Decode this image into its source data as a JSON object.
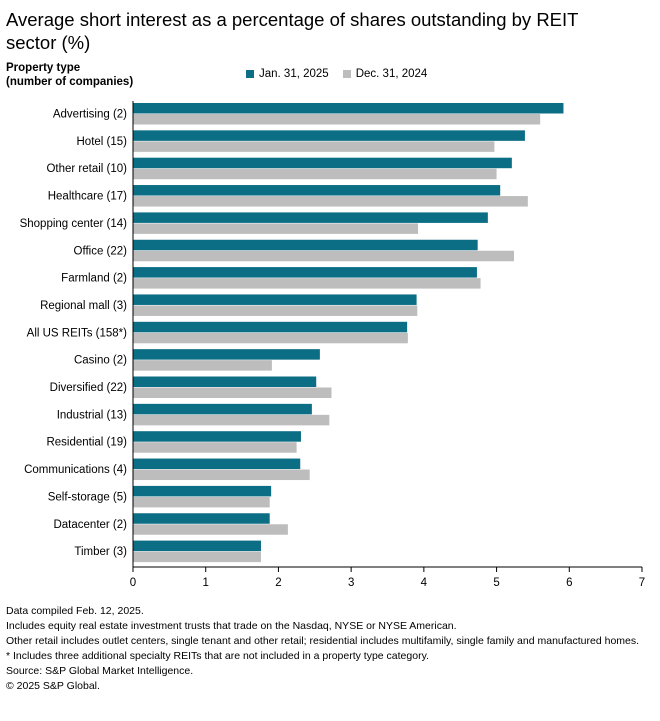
{
  "title": "Average short interest as a percentage of shares outstanding by REIT sector (%)",
  "y_axis_header": [
    "Property type",
    "(number of companies)"
  ],
  "chart_data": {
    "type": "bar",
    "orientation": "horizontal",
    "title": "Average short interest as a percentage of shares outstanding by REIT sector (%)",
    "xlim": [
      0,
      7
    ],
    "x_ticks": [
      "0",
      "1",
      "2",
      "3",
      "4",
      "5",
      "6",
      "7"
    ],
    "grid": false,
    "legend_position": "top",
    "categories": [
      "Advertising (2)",
      "Hotel (15)",
      "Other retail (10)",
      "Healthcare (17)",
      "Shopping center (14)",
      "Office (22)",
      "Farmland (2)",
      "Regional mall (3)",
      "All US REITs (158*)",
      "Casino (2)",
      "Diversified (22)",
      "Industrial (13)",
      "Residential (19)",
      "Communications (4)",
      "Self-storage (5)",
      "Datacenter (2)",
      "Timber (3)"
    ],
    "series": [
      {
        "name": "Jan. 31, 2025",
        "color": "#0b6e85",
        "values": [
          5.92,
          5.39,
          5.21,
          5.05,
          4.88,
          4.74,
          4.73,
          3.9,
          3.77,
          2.57,
          2.52,
          2.46,
          2.31,
          2.3,
          1.9,
          1.88,
          1.76
        ]
      },
      {
        "name": "Dec. 31, 2024",
        "color": "#bdbdbd",
        "values": [
          5.6,
          4.97,
          5.0,
          5.43,
          3.92,
          5.24,
          4.78,
          3.91,
          3.78,
          1.91,
          2.73,
          2.7,
          2.25,
          2.43,
          1.88,
          2.13,
          1.76
        ]
      }
    ]
  },
  "notes": [
    "Data compiled Feb. 12, 2025.",
    "Includes equity real estate investment trusts that trade on the Nasdaq, NYSE or NYSE American.",
    "Other retail includes outlet centers, single tenant and other retail; residential includes multifamily, single family and manufactured homes.",
    "* Includes three additional specialty REITs that are not included in a property type category.",
    "Source: S&P Global Market Intelligence.",
    "© 2025 S&P Global."
  ]
}
